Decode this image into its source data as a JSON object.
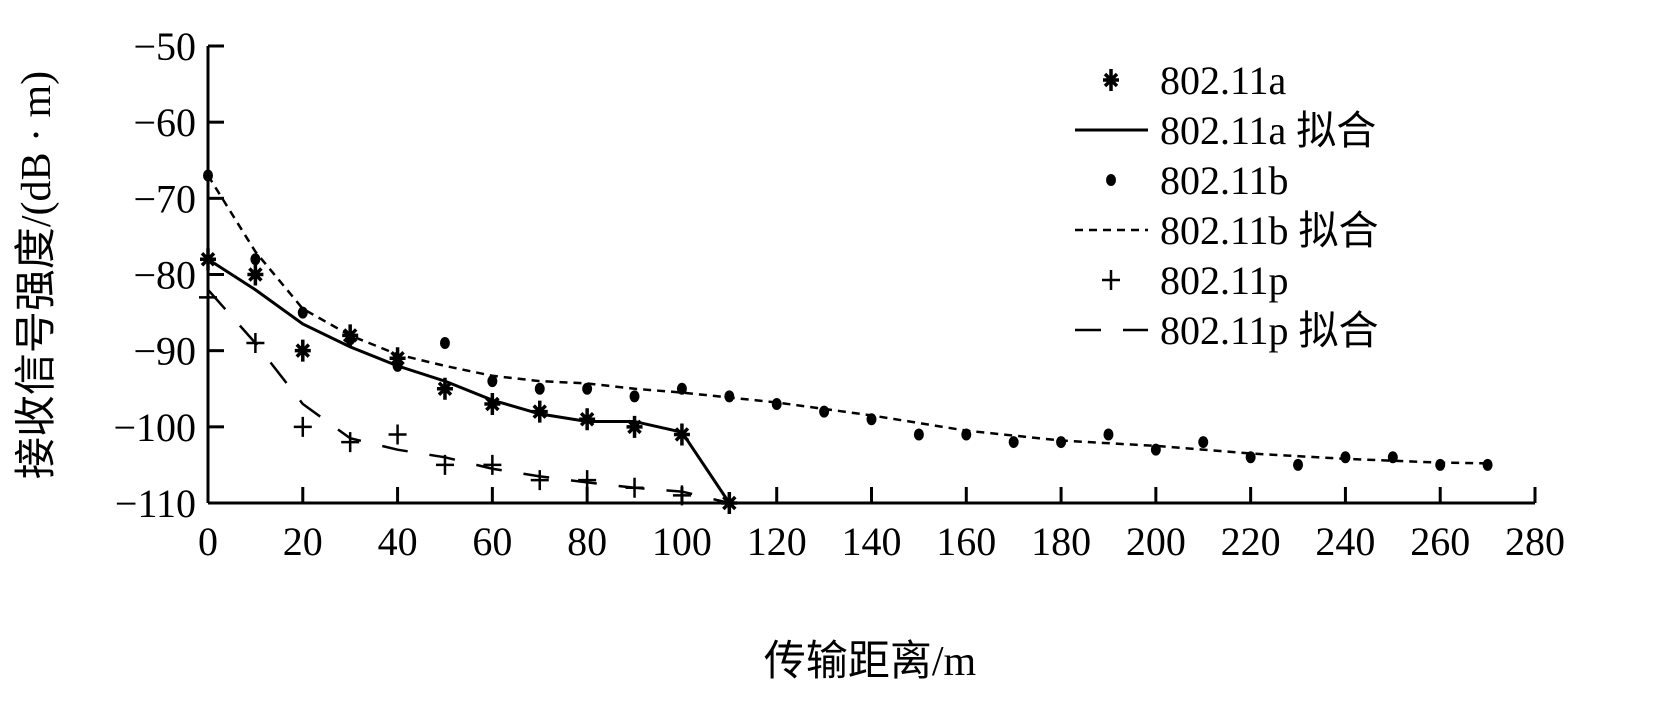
{
  "chart_data": {
    "type": "line",
    "title": "",
    "xlabel": "传输距离/m",
    "ylabel": "接收信号强度/(dB · m)",
    "xlim": [
      0,
      280
    ],
    "ylim": [
      -110,
      -50
    ],
    "xticks": [
      0,
      20,
      40,
      60,
      80,
      100,
      120,
      140,
      160,
      180,
      200,
      220,
      240,
      260,
      280
    ],
    "yticks": [
      -50,
      -60,
      -70,
      -80,
      -90,
      -100,
      -110
    ],
    "legend_position": "top-right",
    "grid": false,
    "series": [
      {
        "name": "802.11a",
        "kind": "marker",
        "marker": "star",
        "x": [
          0,
          10,
          20,
          30,
          40,
          50,
          60,
          70,
          80,
          90,
          100,
          110
        ],
        "y": [
          -78,
          -80,
          -90,
          -88,
          -91,
          -95,
          -97,
          -98,
          -99,
          -100,
          -101,
          -110
        ]
      },
      {
        "name": "802.11a 拟合",
        "kind": "line",
        "dash": "solid",
        "x": [
          0,
          10,
          20,
          30,
          40,
          50,
          60,
          70,
          80,
          90,
          100,
          110
        ],
        "y": [
          -78,
          -82,
          -86.5,
          -89.5,
          -92,
          -94,
          -96.5,
          -98.3,
          -99.3,
          -99.3,
          -100.7,
          -110
        ]
      },
      {
        "name": "802.11b",
        "kind": "marker",
        "marker": "dot",
        "x": [
          0,
          10,
          20,
          30,
          40,
          50,
          60,
          70,
          80,
          90,
          100,
          110,
          120,
          130,
          140,
          150,
          160,
          170,
          180,
          190,
          200,
          210,
          220,
          230,
          240,
          250,
          260,
          270
        ],
        "y": [
          -67,
          -78,
          -85,
          -88.5,
          -92,
          -89,
          -94,
          -95,
          -95,
          -96,
          -95,
          -96,
          -97,
          -98,
          -99,
          -101,
          -101,
          -102,
          -102,
          -101,
          -103,
          -102,
          -104,
          -105,
          -104,
          -104,
          -105,
          -105
        ]
      },
      {
        "name": "802.11b 拟合",
        "kind": "line",
        "dash": "short",
        "x": [
          0,
          10,
          20,
          30,
          40,
          50,
          60,
          70,
          80,
          90,
          100,
          120,
          140,
          160,
          180,
          200,
          220,
          240,
          260,
          270
        ],
        "y": [
          -67,
          -77,
          -84.5,
          -88,
          -90.5,
          -92,
          -93.3,
          -94,
          -94.3,
          -95,
          -95.5,
          -96.8,
          -98.5,
          -100.5,
          -101.8,
          -102.5,
          -103.5,
          -104.2,
          -104.7,
          -104.8
        ]
      },
      {
        "name": "802.11p",
        "kind": "marker",
        "marker": "plus",
        "x": [
          0,
          10,
          20,
          30,
          40,
          50,
          60,
          70,
          80,
          90,
          100,
          110
        ],
        "y": [
          -83,
          -89,
          -100,
          -102,
          -101,
          -105,
          -105,
          -107,
          -107,
          -108,
          -109,
          -110
        ]
      },
      {
        "name": "802.11p 拟合",
        "kind": "line",
        "dash": "long",
        "x": [
          0,
          10,
          20,
          30,
          40,
          50,
          60,
          70,
          80,
          90,
          100,
          110
        ],
        "y": [
          -82,
          -89,
          -97,
          -101.5,
          -103,
          -104,
          -105.5,
          -106.5,
          -107.3,
          -108,
          -108.5,
          -110
        ]
      }
    ]
  }
}
